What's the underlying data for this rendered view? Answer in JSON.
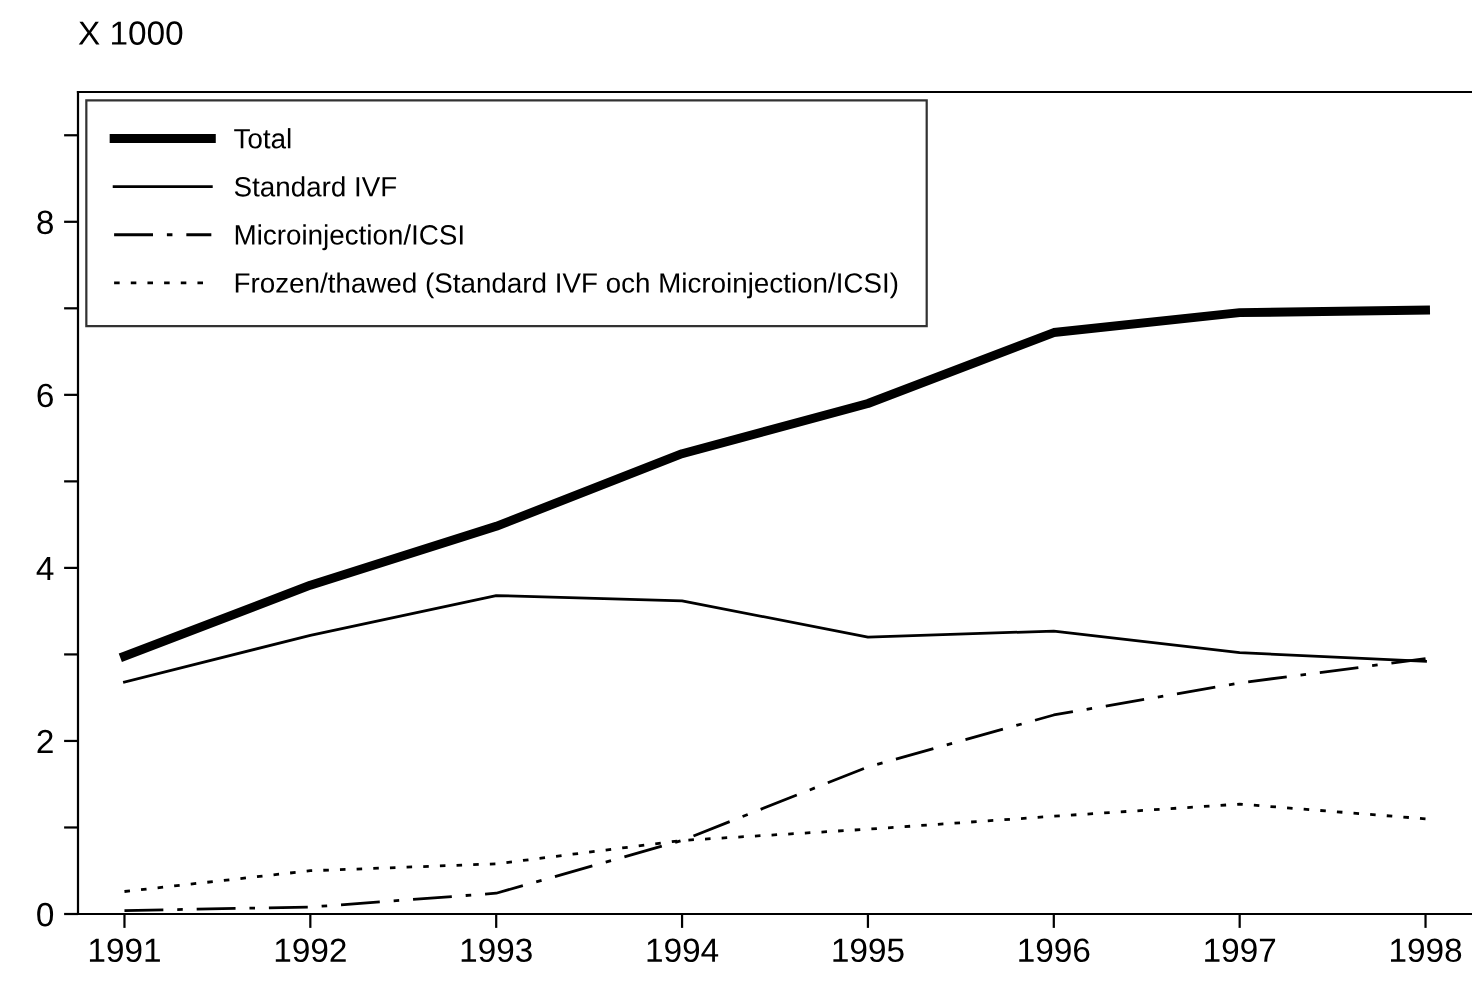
{
  "chart_data": {
    "type": "line",
    "ylabel": "X 1000",
    "x": [
      1991,
      1992,
      1993,
      1994,
      1995,
      1996,
      1997,
      1998
    ],
    "xlim": [
      1990.75,
      1998.25
    ],
    "xticks": [
      1991,
      1992,
      1993,
      1994,
      1995,
      1996,
      1997,
      1998
    ],
    "ylim": [
      0,
      9.5
    ],
    "yticks": [
      0,
      {
        "value": 1,
        "label": null
      },
      2,
      {
        "value": 3,
        "label": null
      },
      4,
      {
        "value": 5,
        "label": null
      },
      6,
      {
        "value": 7,
        "label": null
      },
      8,
      {
        "value": 9,
        "label": null
      }
    ],
    "grid": false,
    "legend": "top left",
    "marker": "none",
    "series": [
      {
        "name": "Total",
        "color": "#000000",
        "line_style": "solid",
        "values": [
          2.98,
          3.8,
          4.48,
          5.32,
          5.9,
          6.72,
          6.95,
          6.98
        ]
      },
      {
        "name": "Standard IVF",
        "color": "#000000",
        "line_style": "solid",
        "values": [
          2.68,
          3.22,
          3.68,
          3.62,
          3.2,
          3.27,
          3.02,
          2.92
        ]
      },
      {
        "name": "Microinjection/ICSI",
        "color": "#000000",
        "line_style": "dashdot",
        "values": [
          0.04,
          0.08,
          0.24,
          0.85,
          1.7,
          2.3,
          2.67,
          2.95
        ]
      },
      {
        "name": "Frozen/thawed (Standard IVF och Microinjection/ICSI)",
        "color": "#000000",
        "line_style": "dotted",
        "values": [
          0.26,
          0.5,
          0.58,
          0.85,
          0.98,
          1.13,
          1.27,
          1.1
        ]
      }
    ]
  }
}
